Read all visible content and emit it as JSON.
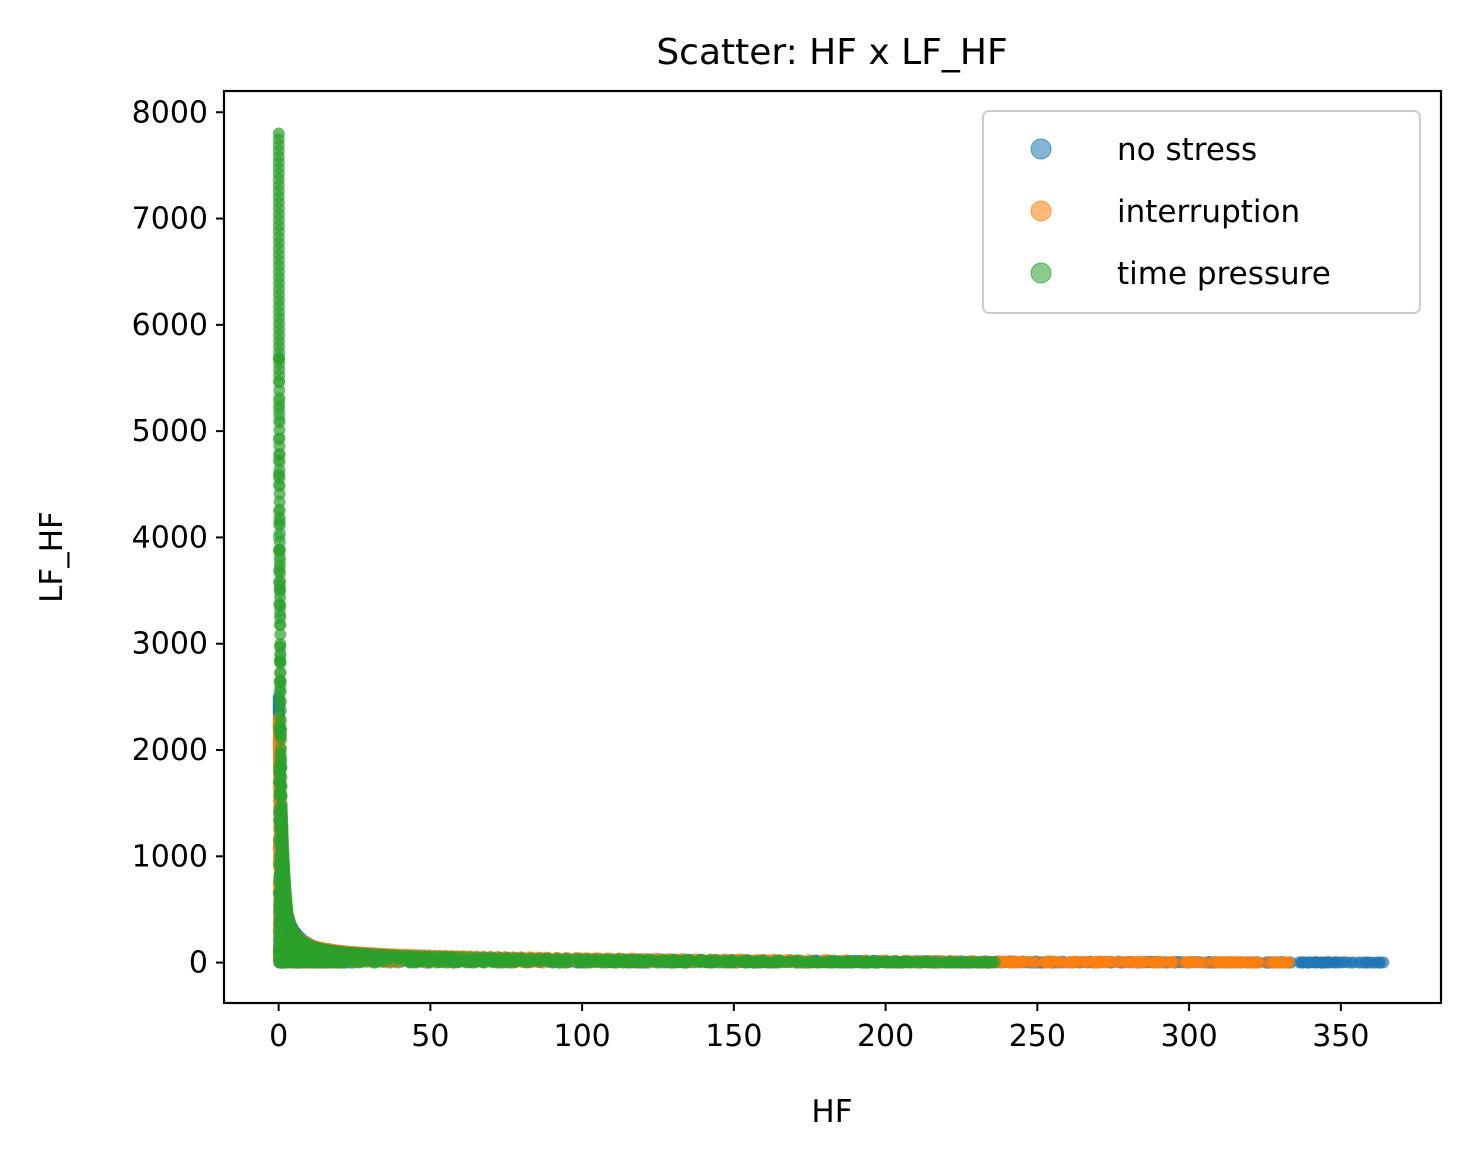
{
  "chart_data": {
    "type": "scatter",
    "title": "Scatter: HF x LF_HF",
    "xlabel": "HF",
    "ylabel": "LF_HF",
    "xlim": [
      -18,
      383
    ],
    "ylim": [
      -380,
      8200
    ],
    "xticks": [
      0,
      50,
      100,
      150,
      200,
      250,
      300,
      350
    ],
    "yticks": [
      0,
      1000,
      2000,
      3000,
      4000,
      5000,
      6000,
      7000,
      8000
    ],
    "grid": false,
    "legend_position": "top-right",
    "series": [
      {
        "name": "no stress",
        "color": "#1f77b4",
        "x_range": [
          0.05,
          364
        ],
        "max_y": 2500,
        "curve": [
          [
            0.05,
            2500
          ],
          [
            0.3,
            1800
          ],
          [
            1,
            1200
          ],
          [
            2,
            700
          ],
          [
            3,
            420
          ],
          [
            5,
            300
          ],
          [
            8,
            210
          ],
          [
            12,
            150
          ],
          [
            20,
            110
          ],
          [
            40,
            70
          ],
          [
            80,
            45
          ],
          [
            150,
            25
          ],
          [
            250,
            10
          ],
          [
            364,
            2
          ]
        ]
      },
      {
        "name": "interruption",
        "color": "#ff7f0e",
        "x_range": [
          0.05,
          333
        ],
        "max_y": 2300,
        "curve": [
          [
            0.05,
            2300
          ],
          [
            0.3,
            1700
          ],
          [
            1,
            1100
          ],
          [
            2,
            650
          ],
          [
            3,
            400
          ],
          [
            5,
            280
          ],
          [
            8,
            200
          ],
          [
            12,
            150
          ],
          [
            20,
            110
          ],
          [
            40,
            75
          ],
          [
            80,
            50
          ],
          [
            150,
            30
          ],
          [
            250,
            12
          ],
          [
            333,
            3
          ]
        ]
      },
      {
        "name": "time pressure",
        "color": "#2ca02c",
        "x_range": [
          0.05,
          236
        ],
        "max_y": 7800,
        "curve": [
          [
            0.05,
            7800
          ],
          [
            0.2,
            5500
          ],
          [
            0.5,
            3400
          ],
          [
            1,
            1500
          ],
          [
            2,
            800
          ],
          [
            3,
            450
          ],
          [
            5,
            280
          ],
          [
            8,
            190
          ],
          [
            12,
            140
          ],
          [
            20,
            100
          ],
          [
            40,
            65
          ],
          [
            80,
            40
          ],
          [
            150,
            22
          ],
          [
            236,
            5
          ]
        ]
      }
    ]
  }
}
